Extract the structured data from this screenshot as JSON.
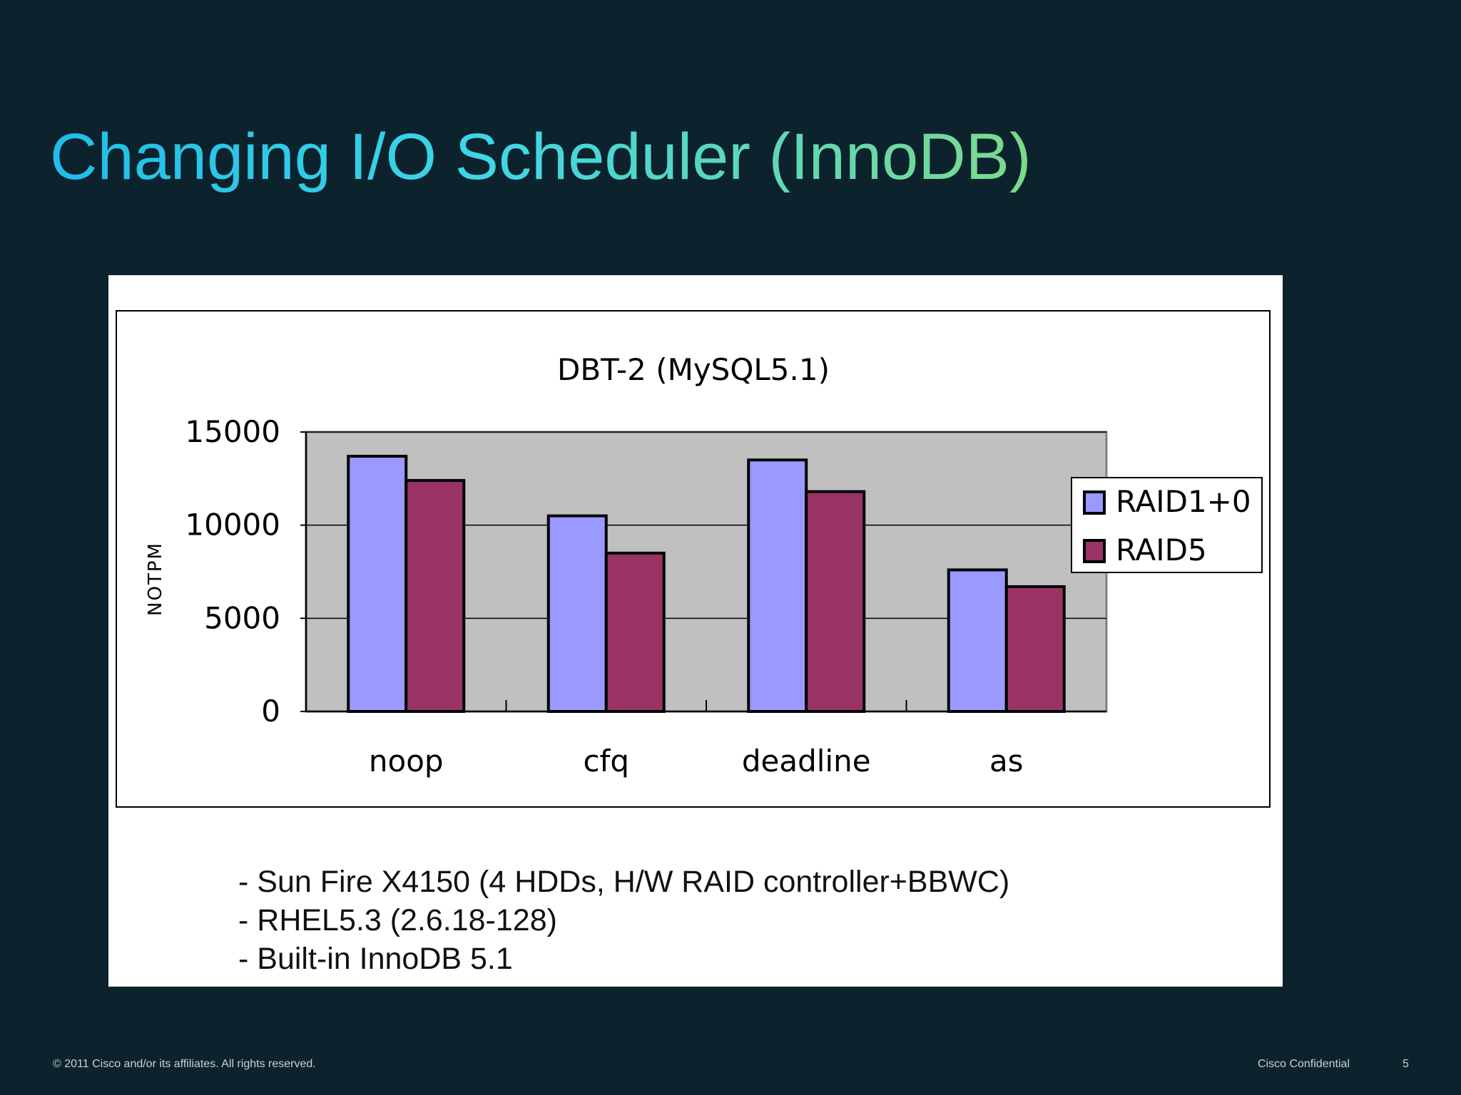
{
  "slide": {
    "title": "Changing I/O Scheduler (InnoDB)",
    "notes": [
      "- Sun Fire X4150 (4 HDDs, H/W RAID controller+BBWC)",
      "- RHEL5.3 (2.6.18-128)",
      "- Built-in InnoDB 5.1"
    ],
    "footer": {
      "copyright": "© 2011 Cisco and/or its affiliates. All rights reserved.",
      "confidential": "Cisco Confidential",
      "page_number": "5"
    }
  },
  "chart_data": {
    "type": "bar",
    "title": "DBT-2 (MySQL5.1)",
    "xlabel": "",
    "ylabel": "NOTPM",
    "categories": [
      "noop",
      "cfq",
      "deadline",
      "as"
    ],
    "series": [
      {
        "name": "RAID1+0",
        "color": "#9999ff",
        "values": [
          13700,
          10500,
          13500,
          7600
        ]
      },
      {
        "name": "RAID5",
        "color": "#993366",
        "values": [
          12400,
          8500,
          11800,
          6700
        ]
      }
    ],
    "ylim": [
      0,
      15000
    ],
    "yticks": [
      "0",
      "5000",
      "10000",
      "15000"
    ],
    "grid": true,
    "plot_background": "#c0c0c0",
    "legend_position": "right"
  }
}
